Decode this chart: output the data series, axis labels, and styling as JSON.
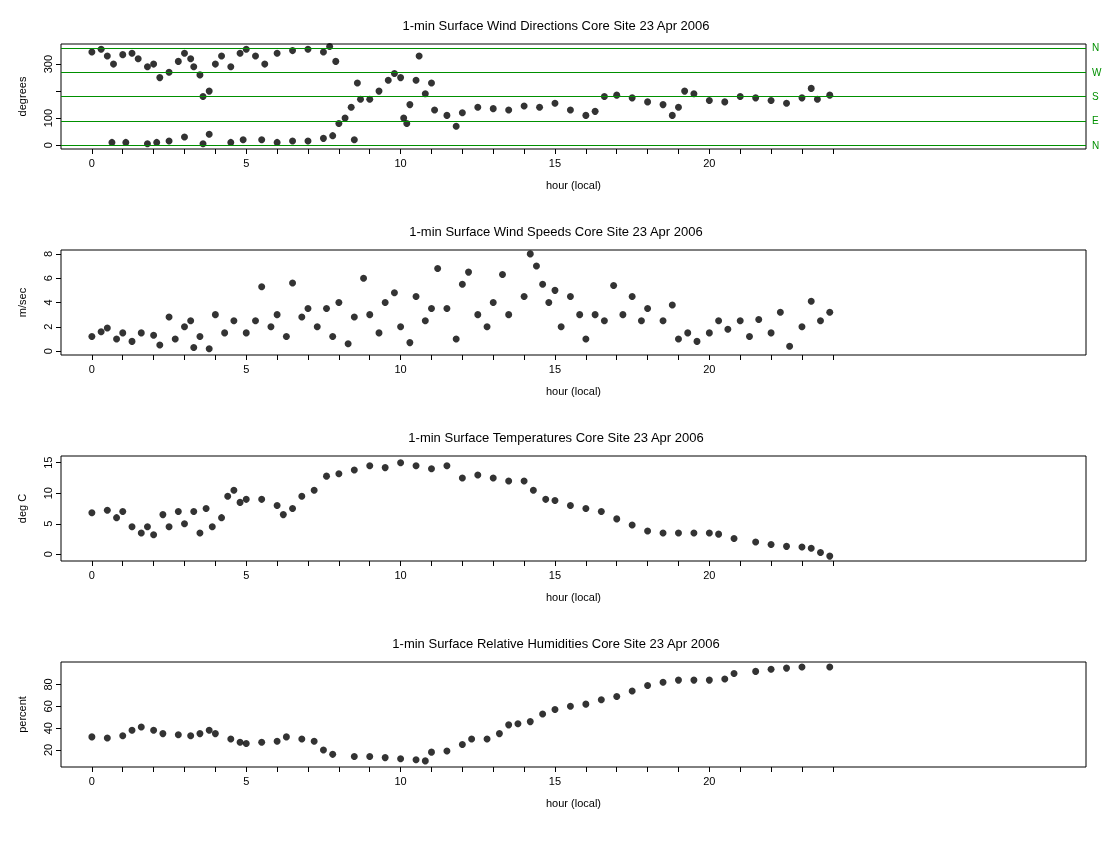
{
  "chart_data": [
    {
      "type": "scatter",
      "title": "1-min Surface Wind Directions Core Site 23 Apr 2006",
      "xlabel": "hour (local)",
      "ylabel": "degrees",
      "marker": "circle",
      "grid": false,
      "xlim": [
        -1,
        32.2
      ],
      "xticks": [
        0,
        {
          "value": 1,
          "label": null
        },
        {
          "value": 2,
          "label": null
        },
        {
          "value": 3,
          "label": null
        },
        {
          "value": 4,
          "label": null
        },
        5,
        {
          "value": 6,
          "label": null
        },
        {
          "value": 7,
          "label": null
        },
        {
          "value": 8,
          "label": null
        },
        {
          "value": 9,
          "label": null
        },
        10,
        {
          "value": 11,
          "label": null
        },
        {
          "value": 12,
          "label": null
        },
        {
          "value": 13,
          "label": null
        },
        {
          "value": 14,
          "label": null
        },
        15,
        {
          "value": 16,
          "label": null
        },
        {
          "value": 17,
          "label": null
        },
        {
          "value": 18,
          "label": null
        },
        {
          "value": 19,
          "label": null
        },
        20,
        {
          "value": 21,
          "label": null
        },
        {
          "value": 22,
          "label": null
        },
        {
          "value": 23,
          "label": null
        },
        {
          "value": 24,
          "label": null
        }
      ],
      "ylim": [
        -14.4,
        374.4
      ],
      "yticks": [
        0,
        100,
        {
          "value": 200,
          "label": null
        },
        300
      ],
      "ref_lines": [
        {
          "axis": "y",
          "value": 0,
          "label": "N",
          "color": "#009000"
        },
        {
          "axis": "y",
          "value": 90,
          "label": "E",
          "color": "#009000"
        },
        {
          "axis": "y",
          "value": 180,
          "label": "S",
          "color": "#009000"
        },
        {
          "axis": "y",
          "value": 270,
          "label": "W",
          "color": "#009000"
        },
        {
          "axis": "y",
          "value": 360,
          "label": "N",
          "color": "#009000"
        }
      ],
      "series": [
        {
          "color": "#000000",
          "x": [
            0,
            0.3,
            0.5,
            0.7,
            1.0,
            1.3,
            1.5,
            1.8,
            2.0,
            2.2,
            2.5,
            2.8,
            3.0,
            3.2,
            3.3,
            3.5,
            3.6,
            3.8,
            4.0,
            4.2,
            4.5,
            4.8,
            5.0,
            5.3,
            5.6,
            6.0,
            6.5,
            7.0,
            7.5,
            7.7,
            7.9,
            0.65,
            1.1,
            1.8,
            2.1,
            2.5,
            3.0,
            3.6,
            3.8,
            4.5,
            4.9,
            5.5,
            6.0,
            6.5,
            7.0,
            7.5,
            7.8,
            8.0,
            8.2,
            8.4,
            8.5,
            8.6,
            8.7,
            9.0,
            9.3,
            9.6,
            9.8,
            10.0,
            10.1,
            10.2,
            10.3,
            10.5,
            10.6,
            10.8,
            11.0,
            11.1,
            11.5,
            11.8,
            12.0,
            12.5,
            13.0,
            13.5,
            14.0,
            14.5,
            15.0,
            15.5,
            16.0,
            16.3,
            16.6,
            17.0,
            17.5,
            18.0,
            18.5,
            18.8,
            19.0,
            19.2,
            19.5,
            20.0,
            20.5,
            21.0,
            21.5,
            22.0,
            22.5,
            23.0,
            23.3,
            23.5,
            23.9
          ],
          "values": [
            345,
            355,
            330,
            300,
            335,
            340,
            320,
            290,
            300,
            250,
            270,
            310,
            340,
            320,
            290,
            260,
            180,
            200,
            300,
            330,
            290,
            340,
            355,
            330,
            300,
            340,
            350,
            355,
            345,
            365,
            310,
            10,
            10,
            5,
            10,
            15,
            30,
            5,
            40,
            10,
            20,
            20,
            10,
            15,
            15,
            25,
            35,
            80,
            100,
            140,
            20,
            230,
            170,
            170,
            200,
            240,
            265,
            250,
            100,
            80,
            150,
            240,
            330,
            190,
            230,
            130,
            110,
            70,
            120,
            140,
            135,
            130,
            145,
            140,
            155,
            130,
            110,
            125,
            180,
            185,
            175,
            160,
            150,
            110,
            140,
            200,
            190,
            165,
            160,
            180,
            175,
            165,
            155,
            175,
            210,
            170,
            185
          ]
        }
      ]
    },
    {
      "type": "scatter",
      "title": "1-min Surface Wind Speeds Core Site 23 Apr 2006",
      "xlabel": "hour (local)",
      "ylabel": "m/sec",
      "marker": "circle",
      "grid": false,
      "xlim": [
        -1,
        32.2
      ],
      "xticks": [
        0,
        {
          "value": 1,
          "label": null
        },
        {
          "value": 2,
          "label": null
        },
        {
          "value": 3,
          "label": null
        },
        {
          "value": 4,
          "label": null
        },
        5,
        {
          "value": 6,
          "label": null
        },
        {
          "value": 7,
          "label": null
        },
        {
          "value": 8,
          "label": null
        },
        {
          "value": 9,
          "label": null
        },
        10,
        {
          "value": 11,
          "label": null
        },
        {
          "value": 12,
          "label": null
        },
        {
          "value": 13,
          "label": null
        },
        {
          "value": 14,
          "label": null
        },
        15,
        {
          "value": 16,
          "label": null
        },
        {
          "value": 17,
          "label": null
        },
        {
          "value": 18,
          "label": null
        },
        {
          "value": 19,
          "label": null
        },
        20,
        {
          "value": 21,
          "label": null
        },
        {
          "value": 22,
          "label": null
        },
        {
          "value": 23,
          "label": null
        },
        {
          "value": 24,
          "label": null
        }
      ],
      "ylim": [
        -0.32,
        8.32
      ],
      "yticks": [
        0,
        2,
        4,
        6,
        8
      ],
      "series": [
        {
          "color": "#000000",
          "x": [
            0,
            0.3,
            0.5,
            0.8,
            1.0,
            1.3,
            1.6,
            2.0,
            2.2,
            2.5,
            2.7,
            3.0,
            3.2,
            3.3,
            3.5,
            3.8,
            4.0,
            4.3,
            4.6,
            5.0,
            5.3,
            5.5,
            5.8,
            6.0,
            6.3,
            6.5,
            6.8,
            7.0,
            7.3,
            7.6,
            7.8,
            8.0,
            8.3,
            8.5,
            8.8,
            9.0,
            9.3,
            9.5,
            9.8,
            10.0,
            10.3,
            10.5,
            10.8,
            11.0,
            11.2,
            11.5,
            11.8,
            12.0,
            12.2,
            12.5,
            12.8,
            13.0,
            13.3,
            13.5,
            14.0,
            14.2,
            14.4,
            14.6,
            14.8,
            15.0,
            15.2,
            15.5,
            15.8,
            16.0,
            16.3,
            16.6,
            16.9,
            17.2,
            17.5,
            17.8,
            18.0,
            18.5,
            18.8,
            19.0,
            19.3,
            19.6,
            20.0,
            20.3,
            20.6,
            21.0,
            21.3,
            21.6,
            22.0,
            22.3,
            22.6,
            23.0,
            23.3,
            23.6,
            23.9
          ],
          "values": [
            1.2,
            1.6,
            1.9,
            1.0,
            1.5,
            0.8,
            1.5,
            1.3,
            0.5,
            2.8,
            1.0,
            2.0,
            2.5,
            0.3,
            1.2,
            0.2,
            3.0,
            1.5,
            2.5,
            1.5,
            2.5,
            5.3,
            2.0,
            3.0,
            1.2,
            5.6,
            2.8,
            3.5,
            2.0,
            3.5,
            1.2,
            4.0,
            0.6,
            2.8,
            6.0,
            3.0,
            1.5,
            4.0,
            4.8,
            2.0,
            0.7,
            4.5,
            2.5,
            3.5,
            6.8,
            3.5,
            1.0,
            5.5,
            6.5,
            3.0,
            2.0,
            4.0,
            6.3,
            3.0,
            4.5,
            8.0,
            7.0,
            5.5,
            4.0,
            5.0,
            2.0,
            4.5,
            3.0,
            1.0,
            3.0,
            2.5,
            5.4,
            3.0,
            4.5,
            2.5,
            3.5,
            2.5,
            3.8,
            1.0,
            1.5,
            0.8,
            1.5,
            2.5,
            1.8,
            2.5,
            1.2,
            2.6,
            1.5,
            3.2,
            0.4,
            2.0,
            4.1,
            2.5,
            3.2
          ]
        }
      ]
    },
    {
      "type": "scatter",
      "title": "1-min Surface Temperatures Core Site 23 Apr 2006",
      "xlabel": "hour (local)",
      "ylabel": "deg C",
      "marker": "circle",
      "grid": false,
      "xlim": [
        -1,
        32.2
      ],
      "xticks": [
        0,
        {
          "value": 1,
          "label": null
        },
        {
          "value": 2,
          "label": null
        },
        {
          "value": 3,
          "label": null
        },
        {
          "value": 4,
          "label": null
        },
        5,
        {
          "value": 6,
          "label": null
        },
        {
          "value": 7,
          "label": null
        },
        {
          "value": 8,
          "label": null
        },
        {
          "value": 9,
          "label": null
        },
        10,
        {
          "value": 11,
          "label": null
        },
        {
          "value": 12,
          "label": null
        },
        {
          "value": 13,
          "label": null
        },
        {
          "value": 14,
          "label": null
        },
        15,
        {
          "value": 16,
          "label": null
        },
        {
          "value": 17,
          "label": null
        },
        {
          "value": 18,
          "label": null
        },
        {
          "value": 19,
          "label": null
        },
        20,
        {
          "value": 21,
          "label": null
        },
        {
          "value": 22,
          "label": null
        },
        {
          "value": 23,
          "label": null
        },
        {
          "value": 24,
          "label": null
        }
      ],
      "ylim": [
        -1.1,
        16.1
      ],
      "yticks": [
        0,
        5,
        10,
        15
      ],
      "series": [
        {
          "color": "#000000",
          "x": [
            0,
            0.5,
            0.8,
            1.0,
            1.3,
            1.6,
            1.8,
            2.0,
            2.3,
            2.5,
            2.8,
            3.0,
            3.3,
            3.5,
            3.7,
            3.9,
            4.2,
            4.4,
            4.6,
            4.8,
            5.0,
            5.5,
            6.0,
            6.2,
            6.5,
            6.8,
            7.2,
            7.6,
            8.0,
            8.5,
            9.0,
            9.5,
            10.0,
            10.5,
            11.0,
            11.5,
            12.0,
            12.5,
            13.0,
            13.5,
            14.0,
            14.3,
            14.7,
            15.0,
            15.5,
            16.0,
            16.5,
            17.0,
            17.5,
            18.0,
            18.5,
            19.0,
            19.5,
            20.0,
            20.3,
            20.8,
            21.5,
            22.0,
            22.5,
            23.0,
            23.3,
            23.6,
            23.9
          ],
          "values": [
            6.8,
            7.2,
            6.0,
            7.0,
            4.5,
            3.5,
            4.5,
            3.2,
            6.5,
            4.5,
            7.0,
            5.0,
            7.0,
            3.5,
            7.5,
            4.5,
            6.0,
            9.5,
            10.5,
            8.5,
            9.0,
            9.0,
            8.0,
            6.5,
            7.5,
            9.5,
            10.5,
            12.8,
            13.2,
            13.8,
            14.5,
            14.2,
            15.0,
            14.5,
            14.0,
            14.5,
            12.5,
            13.0,
            12.5,
            12.0,
            12.0,
            10.5,
            9.0,
            8.8,
            8.0,
            7.5,
            7.0,
            5.8,
            4.8,
            3.8,
            3.5,
            3.5,
            3.5,
            3.5,
            3.3,
            2.6,
            2.0,
            1.6,
            1.3,
            1.2,
            1.0,
            0.3,
            -0.3
          ]
        }
      ]
    },
    {
      "type": "scatter",
      "title": "1-min Surface Relative Humidities Core Site 23 Apr 2006",
      "xlabel": "hour (local)",
      "ylabel": "percent",
      "marker": "circle",
      "grid": false,
      "xlim": [
        -1,
        32.2
      ],
      "xticks": [
        0,
        {
          "value": 1,
          "label": null
        },
        {
          "value": 2,
          "label": null
        },
        {
          "value": 3,
          "label": null
        },
        {
          "value": 4,
          "label": null
        },
        5,
        {
          "value": 6,
          "label": null
        },
        {
          "value": 7,
          "label": null
        },
        {
          "value": 8,
          "label": null
        },
        {
          "value": 9,
          "label": null
        },
        10,
        {
          "value": 11,
          "label": null
        },
        {
          "value": 12,
          "label": null
        },
        {
          "value": 13,
          "label": null
        },
        {
          "value": 14,
          "label": null
        },
        15,
        {
          "value": 16,
          "label": null
        },
        {
          "value": 17,
          "label": null
        },
        {
          "value": 18,
          "label": null
        },
        {
          "value": 19,
          "label": null
        },
        20,
        {
          "value": 21,
          "label": null
        },
        {
          "value": 22,
          "label": null
        },
        {
          "value": 23,
          "label": null
        },
        {
          "value": 24,
          "label": null
        }
      ],
      "ylim": [
        4.4,
        100.6
      ],
      "yticks": [
        20,
        40,
        60,
        80
      ],
      "series": [
        {
          "color": "#000000",
          "x": [
            0,
            0.5,
            1.0,
            1.3,
            1.6,
            2.0,
            2.3,
            2.8,
            3.2,
            3.5,
            3.8,
            4.0,
            4.5,
            4.8,
            5.0,
            5.5,
            6.0,
            6.3,
            6.8,
            7.2,
            7.5,
            7.8,
            8.5,
            9.0,
            9.5,
            10.0,
            10.5,
            10.8,
            11.0,
            11.5,
            12.0,
            12.3,
            12.8,
            13.2,
            13.5,
            13.8,
            14.2,
            14.6,
            15.0,
            15.5,
            16.0,
            16.5,
            17.0,
            17.5,
            18.0,
            18.5,
            19.0,
            19.5,
            20.0,
            20.5,
            20.8,
            21.5,
            22.0,
            22.5,
            23.0,
            23.9
          ],
          "values": [
            32,
            31,
            33,
            38,
            41,
            38,
            35,
            34,
            33,
            35,
            38,
            35,
            30,
            27,
            26,
            27,
            28,
            32,
            30,
            28,
            20,
            16,
            14,
            14,
            13,
            12,
            11,
            10,
            18,
            19,
            25,
            30,
            30,
            35,
            43,
            44,
            46,
            53,
            57,
            60,
            62,
            66,
            69,
            74,
            79,
            82,
            84,
            84,
            84,
            85,
            90,
            92,
            94,
            95,
            96,
            96
          ]
        }
      ]
    }
  ]
}
